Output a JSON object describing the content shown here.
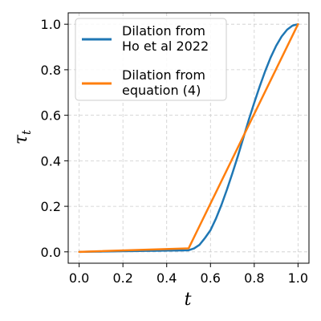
{
  "chart_data": {
    "type": "line",
    "title": "",
    "xlabel": "t",
    "ylabel_base": "τ",
    "ylabel_sub": "t",
    "xlim": [
      -0.05,
      1.05
    ],
    "ylim": [
      -0.05,
      1.05
    ],
    "xticks": [
      "0.0",
      "0.2",
      "0.4",
      "0.6",
      "0.8",
      "1.0"
    ],
    "yticks": [
      "0.0",
      "0.2",
      "0.4",
      "0.6",
      "0.8",
      "1.0"
    ],
    "grid": true,
    "legend_position": "upper-left",
    "series": [
      {
        "name_lines": [
          "Dilation from",
          "Ho et al 2022"
        ],
        "color": "#1f77b4",
        "x": [
          0.0,
          0.05,
          0.1,
          0.15,
          0.2,
          0.25,
          0.3,
          0.35,
          0.4,
          0.45,
          0.5,
          0.525,
          0.55,
          0.575,
          0.6,
          0.625,
          0.65,
          0.675,
          0.7,
          0.725,
          0.75,
          0.775,
          0.8,
          0.825,
          0.85,
          0.875,
          0.9,
          0.925,
          0.95,
          0.975,
          1.0
        ],
        "y": [
          0.0,
          0.0007,
          0.0013,
          0.002,
          0.0027,
          0.0033,
          0.004,
          0.0047,
          0.0053,
          0.006,
          0.007,
          0.015,
          0.031,
          0.061,
          0.095,
          0.146,
          0.206,
          0.273,
          0.345,
          0.42,
          0.5,
          0.58,
          0.655,
          0.727,
          0.794,
          0.854,
          0.905,
          0.946,
          0.976,
          0.994,
          1.0
        ]
      },
      {
        "name_lines": [
          "Dilation from",
          "equation (4)"
        ],
        "color": "#ff7f0e",
        "x": [
          0.0,
          0.5,
          1.0
        ],
        "y": [
          0.0,
          0.015,
          1.0
        ]
      }
    ]
  }
}
